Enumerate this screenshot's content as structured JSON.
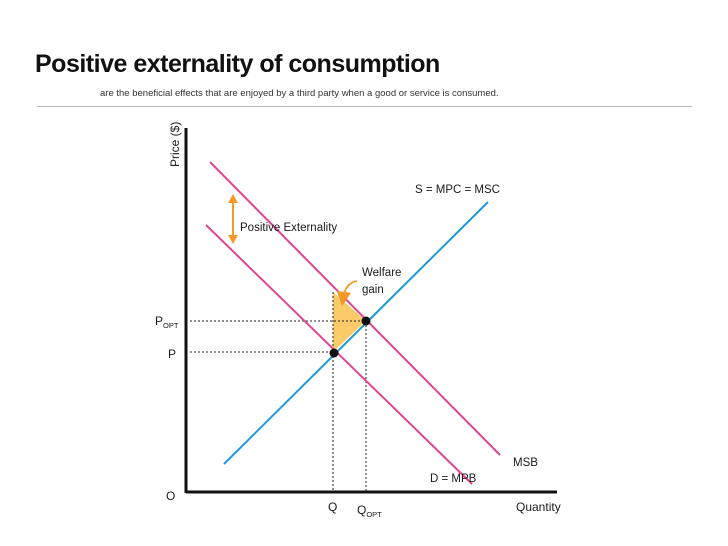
{
  "title": "Positive externality of consumption",
  "subtitle": "are the beneficial effects that are enjoyed by a third party when a good or service is consumed.",
  "axes": {
    "y_label": "Price ($)",
    "x_label": "Quantity",
    "origin": "O"
  },
  "curves": {
    "supply": "S = MPC = MSC",
    "msb": "MSB",
    "demand": "D = MPB"
  },
  "annotations": {
    "positive_externality": "Positive Externality",
    "welfare_gain_line1": "Welfare",
    "welfare_gain_line2": "gain"
  },
  "price_labels": {
    "p_opt_main": "P",
    "p_opt_sub": "OPT",
    "p": "P"
  },
  "quantity_labels": {
    "q": "Q",
    "q_opt_main": "Q",
    "q_opt_sub": "OPT"
  },
  "colors": {
    "supply": "#1e9ad6",
    "benefit": "#e0458f",
    "welfare_fill": "#fbcb6a",
    "arrow": "#f39a2a",
    "axis": "#111111"
  }
}
